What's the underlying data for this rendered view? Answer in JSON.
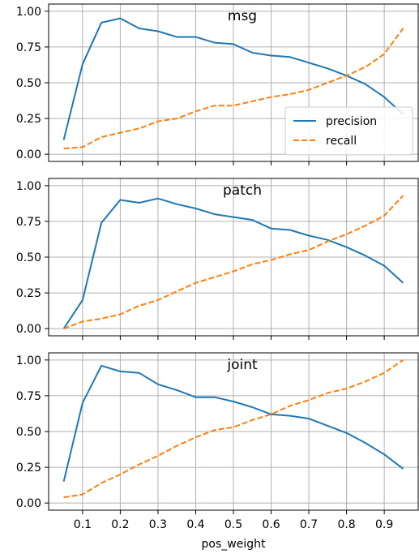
{
  "chart_data": {
    "type": "line",
    "xlabel": "pos_weight",
    "x_ticks": [
      "0.1",
      "0.2",
      "0.3",
      "0.4",
      "0.5",
      "0.6",
      "0.7",
      "0.8",
      "0.9"
    ],
    "y_ticks": [
      "0.00",
      "0.25",
      "0.50",
      "0.75",
      "1.00"
    ],
    "xlim": [
      0.01,
      0.99
    ],
    "ylim": [
      -0.05,
      1.05
    ],
    "x": [
      0.05,
      0.1,
      0.15,
      0.2,
      0.25,
      0.3,
      0.35,
      0.4,
      0.45,
      0.5,
      0.55,
      0.6,
      0.65,
      0.7,
      0.75,
      0.8,
      0.85,
      0.9,
      0.95
    ],
    "grid": true,
    "shared_x_axis": true,
    "legend": {
      "panel": "msg",
      "placement": "lower-right",
      "entries": [
        "precision",
        "recall"
      ]
    },
    "colors": {
      "precision": "#1f77b4",
      "recall": "#ff7f0e"
    },
    "panels": [
      {
        "title": "msg",
        "series": [
          {
            "name": "precision",
            "style": "solid",
            "values": [
              0.1,
              0.63,
              0.92,
              0.95,
              0.88,
              0.86,
              0.82,
              0.82,
              0.78,
              0.77,
              0.71,
              0.69,
              0.68,
              0.64,
              0.6,
              0.55,
              0.49,
              0.4,
              0.28
            ]
          },
          {
            "name": "recall",
            "style": "dashed",
            "values": [
              0.04,
              0.05,
              0.12,
              0.15,
              0.18,
              0.23,
              0.25,
              0.3,
              0.34,
              0.34,
              0.37,
              0.4,
              0.42,
              0.45,
              0.5,
              0.55,
              0.61,
              0.7,
              0.88
            ]
          }
        ]
      },
      {
        "title": "patch",
        "series": [
          {
            "name": "precision",
            "style": "solid",
            "values": [
              0.0,
              0.2,
              0.74,
              0.9,
              0.88,
              0.91,
              0.87,
              0.84,
              0.8,
              0.78,
              0.76,
              0.7,
              0.69,
              0.65,
              0.62,
              0.57,
              0.51,
              0.44,
              0.32
            ]
          },
          {
            "name": "recall",
            "style": "dashed",
            "values": [
              0.0,
              0.05,
              0.07,
              0.1,
              0.16,
              0.2,
              0.26,
              0.32,
              0.36,
              0.4,
              0.45,
              0.48,
              0.52,
              0.55,
              0.61,
              0.66,
              0.72,
              0.79,
              0.93
            ]
          }
        ]
      },
      {
        "title": "joint",
        "series": [
          {
            "name": "precision",
            "style": "solid",
            "values": [
              0.15,
              0.7,
              0.96,
              0.92,
              0.91,
              0.83,
              0.79,
              0.74,
              0.74,
              0.71,
              0.67,
              0.62,
              0.61,
              0.59,
              0.54,
              0.49,
              0.42,
              0.34,
              0.24
            ]
          },
          {
            "name": "recall",
            "style": "dashed",
            "values": [
              0.04,
              0.06,
              0.14,
              0.2,
              0.27,
              0.33,
              0.4,
              0.46,
              0.51,
              0.53,
              0.58,
              0.62,
              0.68,
              0.72,
              0.77,
              0.8,
              0.85,
              0.91,
              1.0
            ]
          }
        ]
      }
    ]
  }
}
